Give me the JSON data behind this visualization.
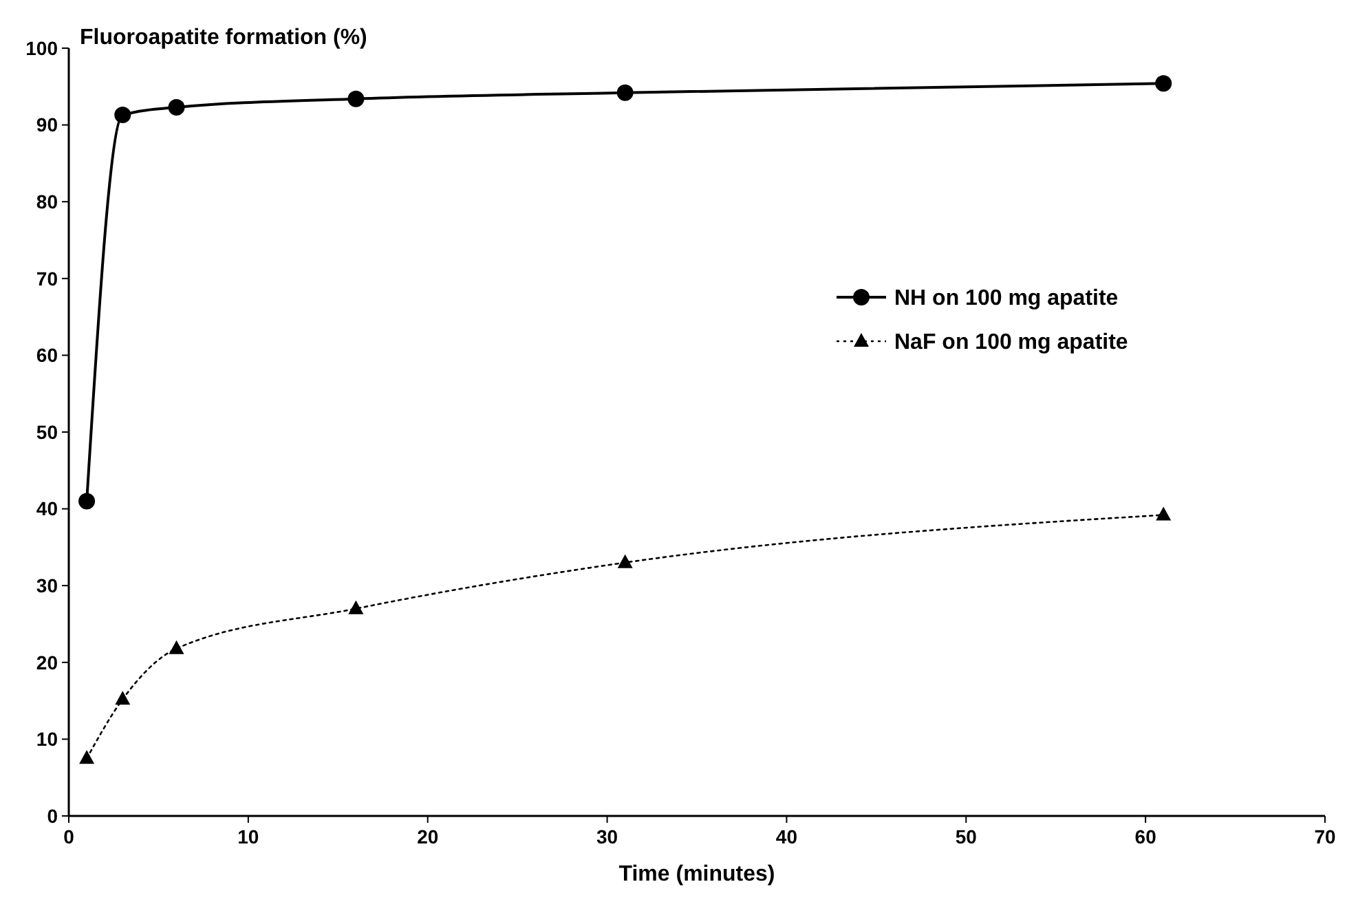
{
  "chart_data": {
    "type": "line",
    "ylabel": "Fluoroapatite formation (%)",
    "xlabel": "Time (minutes)",
    "x": [
      1,
      3,
      6,
      16,
      31,
      61
    ],
    "series": [
      {
        "name": "NH on 100 mg apatite",
        "color": "#000000",
        "values": [
          41,
          91.3,
          92.3,
          93.4,
          94.2,
          95.4
        ],
        "marker": "circle",
        "line_style": "solid"
      },
      {
        "name": "NaF on 100 mg apatite",
        "color": "#000000",
        "values": [
          7.5,
          15.2,
          21.8,
          27,
          33,
          39.2
        ],
        "marker": "triangle",
        "line_style": "dotted"
      }
    ],
    "xlim": [
      0,
      70
    ],
    "xticks": [
      0,
      10,
      20,
      30,
      40,
      50,
      60,
      70
    ],
    "ylim": [
      0,
      100
    ],
    "yticks": [
      0,
      10,
      20,
      30,
      40,
      50,
      60,
      70,
      80,
      90,
      100
    ],
    "grid": false,
    "legend": "right"
  }
}
